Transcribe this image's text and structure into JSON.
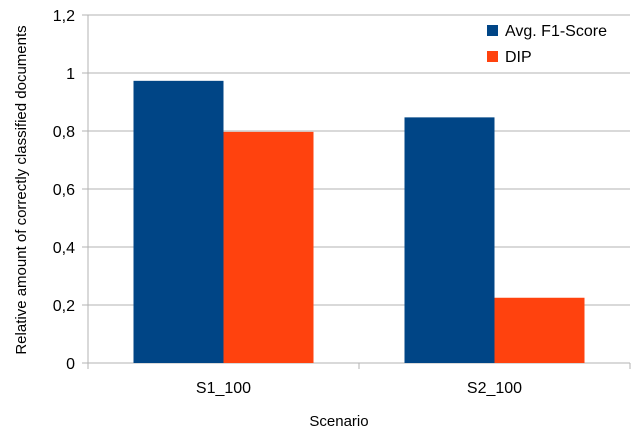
{
  "chart_data": {
    "type": "bar",
    "title": "",
    "xlabel": "Scenario",
    "ylabel": "Relative amount of correctly classified documents",
    "categories": [
      "S1_100",
      "S2_100"
    ],
    "series": [
      {
        "name": "Avg. F1-Score",
        "values": [
          0.973,
          0.847
        ],
        "color": "#004586"
      },
      {
        "name": "DIP",
        "values": [
          0.797,
          0.225
        ],
        "color": "#ff420e"
      }
    ],
    "ylim": [
      0,
      1.2
    ],
    "yticks": [
      "0",
      "0,2",
      "0,4",
      "0,6",
      "0,8",
      "1",
      "1,2"
    ],
    "grid": true,
    "legend_position": "top-right"
  }
}
